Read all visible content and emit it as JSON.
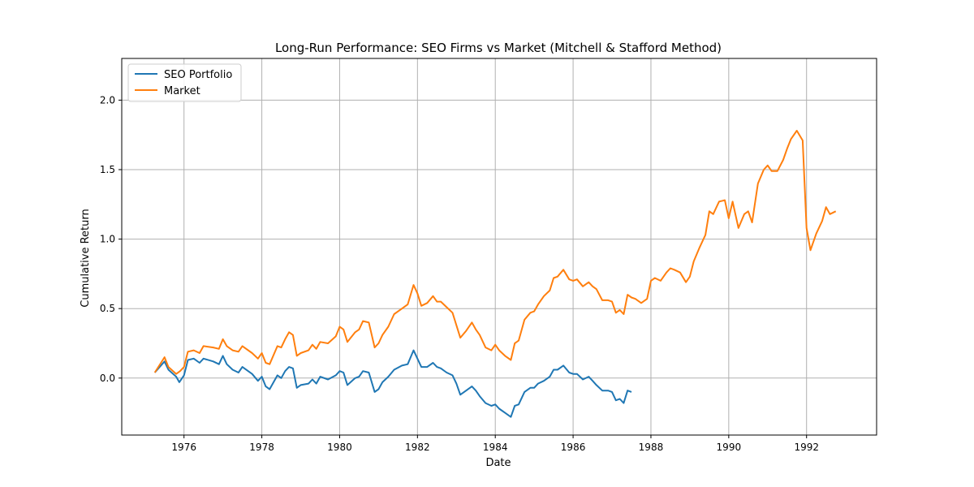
{
  "chart_data": {
    "type": "line",
    "title": "Long-Run Performance: SEO Firms vs Market (Mitchell & Stafford Method)",
    "xlabel": "Date",
    "ylabel": "Cumulative Return",
    "xlim": [
      1974.4,
      1993.8
    ],
    "ylim": [
      -0.41,
      2.3
    ],
    "x_ticks": [
      1976,
      1978,
      1980,
      1982,
      1984,
      1986,
      1988,
      1990,
      1992
    ],
    "y_ticks": [
      0.0,
      0.5,
      1.0,
      1.5,
      2.0
    ],
    "x_tick_labels": [
      "1976",
      "1978",
      "1980",
      "1982",
      "1984",
      "1986",
      "1988",
      "1990",
      "1992"
    ],
    "y_tick_labels": [
      "0.0",
      "0.5",
      "1.0",
      "1.5",
      "2.0"
    ],
    "grid": true,
    "legend_position": "top-left",
    "series": [
      {
        "name": "SEO Portfolio",
        "color": "#1f77b4",
        "points": [
          [
            1975.25,
            0.04
          ],
          [
            1975.5,
            0.12
          ],
          [
            1975.6,
            0.06
          ],
          [
            1975.8,
            0.01
          ],
          [
            1975.88,
            -0.03
          ],
          [
            1976.0,
            0.02
          ],
          [
            1976.1,
            0.13
          ],
          [
            1976.25,
            0.14
          ],
          [
            1976.4,
            0.11
          ],
          [
            1976.5,
            0.14
          ],
          [
            1976.75,
            0.12
          ],
          [
            1976.9,
            0.1
          ],
          [
            1977.0,
            0.16
          ],
          [
            1977.1,
            0.1
          ],
          [
            1977.25,
            0.06
          ],
          [
            1977.4,
            0.04
          ],
          [
            1977.5,
            0.08
          ],
          [
            1977.75,
            0.03
          ],
          [
            1977.9,
            -0.02
          ],
          [
            1978.0,
            0.01
          ],
          [
            1978.1,
            -0.06
          ],
          [
            1978.2,
            -0.08
          ],
          [
            1978.4,
            0.02
          ],
          [
            1978.5,
            0.0
          ],
          [
            1978.6,
            0.05
          ],
          [
            1978.7,
            0.08
          ],
          [
            1978.8,
            0.07
          ],
          [
            1978.9,
            -0.07
          ],
          [
            1979.0,
            -0.05
          ],
          [
            1979.2,
            -0.04
          ],
          [
            1979.3,
            -0.01
          ],
          [
            1979.4,
            -0.04
          ],
          [
            1979.5,
            0.01
          ],
          [
            1979.7,
            -0.01
          ],
          [
            1979.9,
            0.02
          ],
          [
            1980.0,
            0.05
          ],
          [
            1980.1,
            0.04
          ],
          [
            1980.2,
            -0.05
          ],
          [
            1980.4,
            0.0
          ],
          [
            1980.5,
            0.01
          ],
          [
            1980.6,
            0.05
          ],
          [
            1980.75,
            0.04
          ],
          [
            1980.9,
            -0.1
          ],
          [
            1981.0,
            -0.08
          ],
          [
            1981.1,
            -0.03
          ],
          [
            1981.25,
            0.01
          ],
          [
            1981.4,
            0.06
          ],
          [
            1981.6,
            0.09
          ],
          [
            1981.75,
            0.1
          ],
          [
            1981.9,
            0.2
          ],
          [
            1982.0,
            0.14
          ],
          [
            1982.1,
            0.08
          ],
          [
            1982.25,
            0.08
          ],
          [
            1982.4,
            0.11
          ],
          [
            1982.5,
            0.08
          ],
          [
            1982.6,
            0.07
          ],
          [
            1982.75,
            0.04
          ],
          [
            1982.9,
            0.02
          ],
          [
            1983.0,
            -0.04
          ],
          [
            1983.1,
            -0.12
          ],
          [
            1983.25,
            -0.09
          ],
          [
            1983.4,
            -0.06
          ],
          [
            1983.5,
            -0.09
          ],
          [
            1983.6,
            -0.13
          ],
          [
            1983.75,
            -0.18
          ],
          [
            1983.9,
            -0.2
          ],
          [
            1984.0,
            -0.19
          ],
          [
            1984.1,
            -0.22
          ],
          [
            1984.25,
            -0.25
          ],
          [
            1984.4,
            -0.28
          ],
          [
            1984.5,
            -0.2
          ],
          [
            1984.6,
            -0.19
          ],
          [
            1984.75,
            -0.1
          ],
          [
            1984.9,
            -0.07
          ],
          [
            1985.0,
            -0.07
          ],
          [
            1985.1,
            -0.04
          ],
          [
            1985.25,
            -0.02
          ],
          [
            1985.4,
            0.01
          ],
          [
            1985.5,
            0.06
          ],
          [
            1985.6,
            0.06
          ],
          [
            1985.75,
            0.09
          ],
          [
            1985.9,
            0.04
          ],
          [
            1986.0,
            0.03
          ],
          [
            1986.1,
            0.03
          ],
          [
            1986.25,
            -0.01
          ],
          [
            1986.4,
            0.01
          ],
          [
            1986.5,
            -0.02
          ],
          [
            1986.6,
            -0.05
          ],
          [
            1986.75,
            -0.09
          ],
          [
            1986.9,
            -0.09
          ],
          [
            1987.0,
            -0.1
          ],
          [
            1987.1,
            -0.16
          ],
          [
            1987.2,
            -0.15
          ],
          [
            1987.3,
            -0.18
          ],
          [
            1987.4,
            -0.09
          ],
          [
            1987.5,
            -0.1
          ]
        ]
      },
      {
        "name": "Market",
        "color": "#ff7f0e",
        "points": [
          [
            1975.25,
            0.04
          ],
          [
            1975.5,
            0.15
          ],
          [
            1975.6,
            0.08
          ],
          [
            1975.8,
            0.03
          ],
          [
            1975.9,
            0.05
          ],
          [
            1976.0,
            0.08
          ],
          [
            1976.1,
            0.19
          ],
          [
            1976.25,
            0.2
          ],
          [
            1976.4,
            0.18
          ],
          [
            1976.5,
            0.23
          ],
          [
            1976.75,
            0.22
          ],
          [
            1976.9,
            0.21
          ],
          [
            1977.0,
            0.28
          ],
          [
            1977.1,
            0.23
          ],
          [
            1977.25,
            0.2
          ],
          [
            1977.4,
            0.19
          ],
          [
            1977.5,
            0.23
          ],
          [
            1977.75,
            0.18
          ],
          [
            1977.9,
            0.14
          ],
          [
            1978.0,
            0.18
          ],
          [
            1978.1,
            0.11
          ],
          [
            1978.2,
            0.1
          ],
          [
            1978.4,
            0.23
          ],
          [
            1978.5,
            0.22
          ],
          [
            1978.6,
            0.28
          ],
          [
            1978.7,
            0.33
          ],
          [
            1978.8,
            0.31
          ],
          [
            1978.9,
            0.16
          ],
          [
            1979.0,
            0.18
          ],
          [
            1979.2,
            0.2
          ],
          [
            1979.3,
            0.24
          ],
          [
            1979.4,
            0.21
          ],
          [
            1979.5,
            0.26
          ],
          [
            1979.7,
            0.25
          ],
          [
            1979.9,
            0.3
          ],
          [
            1980.0,
            0.37
          ],
          [
            1980.1,
            0.35
          ],
          [
            1980.2,
            0.26
          ],
          [
            1980.4,
            0.33
          ],
          [
            1980.5,
            0.35
          ],
          [
            1980.6,
            0.41
          ],
          [
            1980.75,
            0.4
          ],
          [
            1980.9,
            0.22
          ],
          [
            1981.0,
            0.25
          ],
          [
            1981.1,
            0.31
          ],
          [
            1981.25,
            0.37
          ],
          [
            1981.4,
            0.46
          ],
          [
            1981.6,
            0.5
          ],
          [
            1981.75,
            0.53
          ],
          [
            1981.9,
            0.67
          ],
          [
            1982.0,
            0.61
          ],
          [
            1982.1,
            0.52
          ],
          [
            1982.25,
            0.54
          ],
          [
            1982.4,
            0.59
          ],
          [
            1982.5,
            0.55
          ],
          [
            1982.6,
            0.55
          ],
          [
            1982.75,
            0.51
          ],
          [
            1982.9,
            0.47
          ],
          [
            1983.0,
            0.38
          ],
          [
            1983.1,
            0.29
          ],
          [
            1983.25,
            0.34
          ],
          [
            1983.4,
            0.4
          ],
          [
            1983.5,
            0.35
          ],
          [
            1983.6,
            0.31
          ],
          [
            1983.75,
            0.22
          ],
          [
            1983.9,
            0.2
          ],
          [
            1984.0,
            0.24
          ],
          [
            1984.1,
            0.2
          ],
          [
            1984.25,
            0.16
          ],
          [
            1984.4,
            0.13
          ],
          [
            1984.5,
            0.25
          ],
          [
            1984.6,
            0.27
          ],
          [
            1984.75,
            0.42
          ],
          [
            1984.9,
            0.47
          ],
          [
            1985.0,
            0.48
          ],
          [
            1985.1,
            0.53
          ],
          [
            1985.25,
            0.59
          ],
          [
            1985.4,
            0.63
          ],
          [
            1985.5,
            0.72
          ],
          [
            1985.6,
            0.73
          ],
          [
            1985.75,
            0.78
          ],
          [
            1985.9,
            0.71
          ],
          [
            1986.0,
            0.7
          ],
          [
            1986.1,
            0.71
          ],
          [
            1986.25,
            0.66
          ],
          [
            1986.4,
            0.69
          ],
          [
            1986.5,
            0.66
          ],
          [
            1986.6,
            0.64
          ],
          [
            1986.75,
            0.56
          ],
          [
            1986.9,
            0.56
          ],
          [
            1987.0,
            0.55
          ],
          [
            1987.1,
            0.47
          ],
          [
            1987.2,
            0.49
          ],
          [
            1987.3,
            0.46
          ],
          [
            1987.4,
            0.6
          ],
          [
            1987.5,
            0.58
          ],
          [
            1987.6,
            0.57
          ],
          [
            1987.75,
            0.54
          ],
          [
            1987.9,
            0.57
          ],
          [
            1988.0,
            0.7
          ],
          [
            1988.1,
            0.72
          ],
          [
            1988.25,
            0.7
          ],
          [
            1988.4,
            0.76
          ],
          [
            1988.5,
            0.79
          ],
          [
            1988.6,
            0.78
          ],
          [
            1988.75,
            0.76
          ],
          [
            1988.9,
            0.69
          ],
          [
            1989.0,
            0.73
          ],
          [
            1989.1,
            0.84
          ],
          [
            1989.25,
            0.94
          ],
          [
            1989.4,
            1.03
          ],
          [
            1989.5,
            1.2
          ],
          [
            1989.6,
            1.18
          ],
          [
            1989.75,
            1.27
          ],
          [
            1989.9,
            1.28
          ],
          [
            1990.0,
            1.15
          ],
          [
            1990.1,
            1.27
          ],
          [
            1990.25,
            1.08
          ],
          [
            1990.4,
            1.18
          ],
          [
            1990.5,
            1.2
          ],
          [
            1990.6,
            1.12
          ],
          [
            1990.75,
            1.4
          ],
          [
            1990.9,
            1.5
          ],
          [
            1991.0,
            1.53
          ],
          [
            1991.1,
            1.49
          ],
          [
            1991.25,
            1.49
          ],
          [
            1991.4,
            1.57
          ],
          [
            1991.5,
            1.65
          ],
          [
            1991.6,
            1.72
          ],
          [
            1991.75,
            1.78
          ],
          [
            1991.9,
            1.71
          ],
          [
            1992.0,
            1.08
          ],
          [
            1992.1,
            0.92
          ],
          [
            1992.25,
            1.04
          ],
          [
            1992.4,
            1.13
          ],
          [
            1992.5,
            1.23
          ],
          [
            1992.6,
            1.18
          ],
          [
            1992.75,
            1.2
          ]
        ]
      }
    ]
  }
}
